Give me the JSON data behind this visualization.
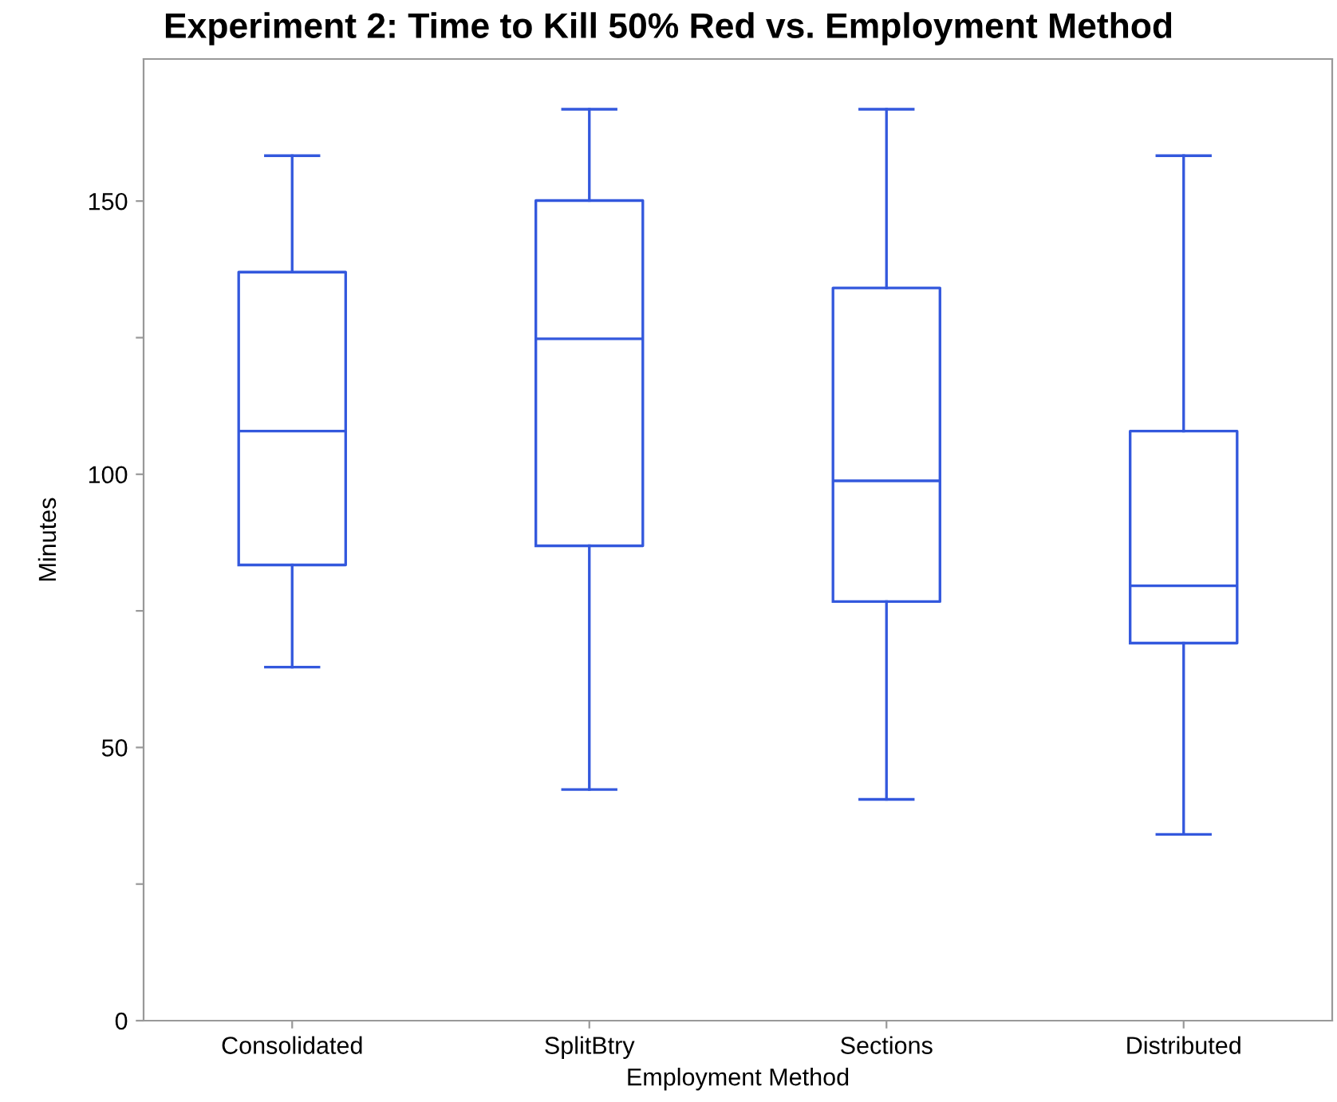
{
  "chart_data": {
    "type": "box",
    "title": "Experiment 2: Time to Kill 50% Red vs. Employment Method",
    "xlabel": "Employment Method",
    "ylabel": "Minutes",
    "categories": [
      "Consolidated",
      "SplitBtry",
      "Sections",
      "Distributed"
    ],
    "color": "#3358dd",
    "boxes": [
      {
        "low": 64.7,
        "q1": 83.4,
        "median": 107.9,
        "q3": 137.0,
        "high": 158.3
      },
      {
        "low": 42.3,
        "q1": 86.9,
        "median": 124.8,
        "q3": 150.1,
        "high": 166.8
      },
      {
        "low": 40.5,
        "q1": 76.7,
        "median": 98.8,
        "q3": 134.1,
        "high": 166.8
      },
      {
        "low": 34.1,
        "q1": 69.1,
        "median": 79.6,
        "q3": 107.9,
        "high": 158.3
      }
    ],
    "ylim": [
      0,
      176
    ],
    "yticks": [
      0,
      {
        "value": 25,
        "label": null
      },
      50,
      {
        "value": 75,
        "label": null
      },
      100,
      {
        "value": 125,
        "label": null
      },
      150
    ],
    "grid": false
  }
}
